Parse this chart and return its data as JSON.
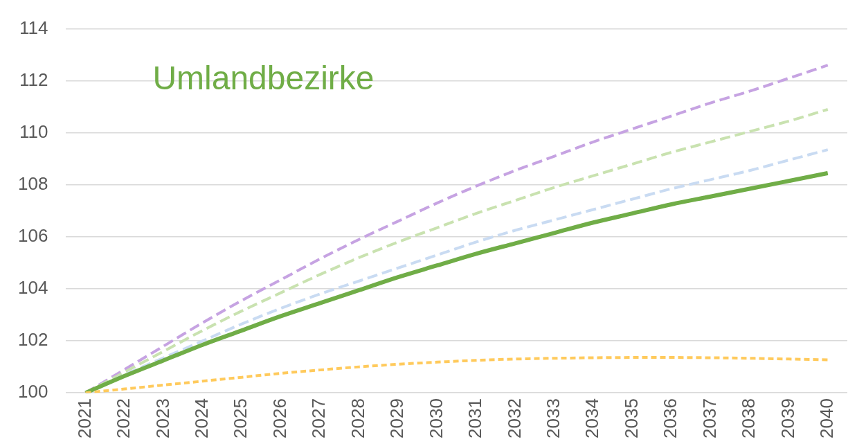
{
  "chart_data": {
    "type": "line",
    "title": "Umlandbezirke",
    "categories": [
      "2021",
      "2022",
      "2023",
      "2024",
      "2025",
      "2026",
      "2027",
      "2028",
      "2029",
      "2030",
      "2031",
      "2032",
      "2033",
      "2034",
      "2035",
      "2036",
      "2037",
      "2038",
      "2039",
      "2040"
    ],
    "series": [
      {
        "color": "#c6a3e2",
        "line_style": "dashed",
        "values": [
          100,
          100.9,
          101.8,
          102.7,
          103.55,
          104.35,
          105.15,
          105.9,
          106.6,
          107.3,
          107.95,
          108.55,
          109.1,
          109.65,
          110.15,
          110.65,
          111.15,
          111.6,
          112.1,
          112.6
        ]
      },
      {
        "color": "#c9e2b0",
        "line_style": "dashed",
        "values": [
          100,
          100.8,
          101.6,
          102.4,
          103.15,
          103.85,
          104.55,
          105.2,
          105.8,
          106.35,
          106.9,
          107.4,
          107.9,
          108.35,
          108.8,
          109.25,
          109.65,
          110.05,
          110.45,
          110.9
        ]
      },
      {
        "color": "#c9dbf2",
        "line_style": "dashed",
        "values": [
          100,
          100.7,
          101.35,
          102.0,
          102.65,
          103.25,
          103.8,
          104.3,
          104.8,
          105.3,
          105.8,
          106.25,
          106.65,
          107.05,
          107.45,
          107.85,
          108.2,
          108.55,
          108.95,
          109.35
        ]
      },
      {
        "color": "#70ad47",
        "line_style": "solid",
        "values": [
          100,
          100.65,
          101.25,
          101.85,
          102.4,
          102.95,
          103.45,
          103.95,
          104.45,
          104.9,
          105.35,
          105.75,
          106.15,
          106.55,
          106.9,
          107.25,
          107.55,
          107.85,
          108.15,
          108.45
        ]
      },
      {
        "color": "#ffca5c",
        "line_style": "dotted",
        "values": [
          100,
          100.15,
          100.3,
          100.45,
          100.6,
          100.75,
          100.88,
          101.0,
          101.1,
          101.18,
          101.25,
          101.3,
          101.33,
          101.35,
          101.36,
          101.36,
          101.35,
          101.33,
          101.3,
          101.27
        ]
      }
    ],
    "ylim": [
      100,
      114
    ],
    "yticks": [
      100,
      102,
      104,
      106,
      108,
      110,
      112,
      114
    ],
    "grid": "y",
    "legend": false,
    "marker": "none"
  }
}
